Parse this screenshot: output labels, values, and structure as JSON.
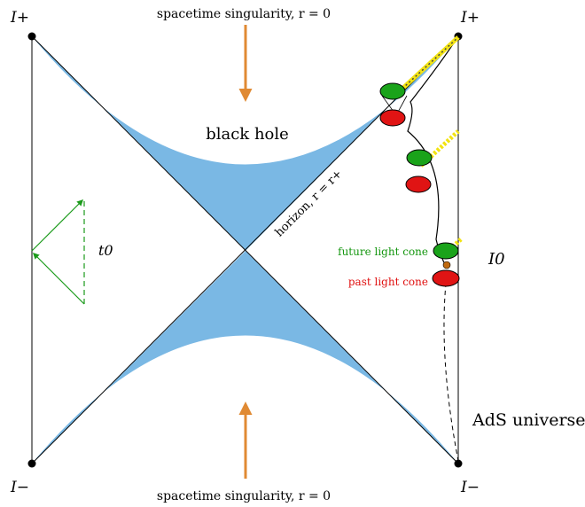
{
  "labels": {
    "singularity_top": "spacetime singularity, r = 0",
    "singularity_bottom": "spacetime singularity, r = 0",
    "black_hole": "black hole",
    "horizon": "horizon, r = r+",
    "future_light_cone": "future light cone",
    "past_light_cone": "past light cone",
    "ads_universe": "AdS universe",
    "t0": "t0",
    "I0": "I0",
    "I_plus_left": "I+",
    "I_plus_right": "I+",
    "I_minus_left": "I−",
    "I_minus_right": "I−"
  },
  "colors": {
    "region_fill": "#7ab8e4",
    "arrow_orange": "#e08a33",
    "cone_green": "#1aa31a",
    "cone_red": "#e01414",
    "cone_outline": "#000000",
    "light_ray_yellow": "#f2e312",
    "light_ray_dark": "#444444",
    "observer_dot": "#c06a10",
    "t0_green": "#1a9a1a",
    "future_text": "#14960f",
    "past_text": "#e01010"
  }
}
